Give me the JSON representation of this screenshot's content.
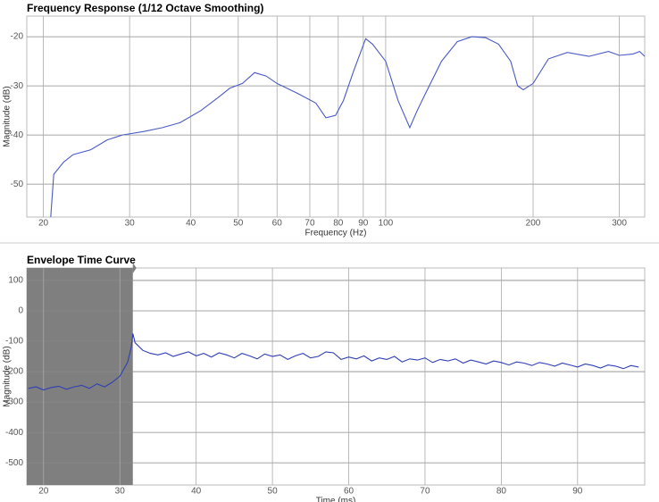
{
  "chart_data": [
    {
      "type": "line",
      "title": "Frequency Response (1/12 Octave Smoothing)",
      "xlabel": "Frequency (Hz)",
      "ylabel": "Magnitude (dB)",
      "xscale": "log",
      "xlim": [
        18.5,
        338
      ],
      "xticks": [
        20,
        30,
        40,
        50,
        60,
        70,
        80,
        90,
        100,
        200,
        300
      ],
      "ylim": [
        -56.7,
        -15.8
      ],
      "yticks": [
        -20,
        -30,
        -40,
        -50
      ],
      "grid": true,
      "color": "#4a5bc4",
      "x": [
        20.7,
        21,
        22,
        23,
        25,
        27,
        29,
        32,
        35,
        38,
        42,
        46,
        48,
        51,
        54,
        57,
        60,
        66,
        72,
        75.5,
        79,
        82,
        86,
        91,
        94,
        100,
        106,
        112,
        116,
        120,
        130,
        140,
        150,
        160,
        170,
        180,
        186,
        191,
        200,
        215,
        235,
        260,
        285,
        300,
        320,
        330,
        338
      ],
      "values": [
        -56.7,
        -48,
        -45.5,
        -44,
        -43,
        -41,
        -40,
        -39.3,
        -38.5,
        -37.5,
        -35,
        -32,
        -30.5,
        -29.5,
        -27.3,
        -28,
        -29.5,
        -31.5,
        -33.5,
        -36.5,
        -36,
        -33,
        -27,
        -20.4,
        -21.5,
        -25,
        -33,
        -38.5,
        -35,
        -32,
        -25,
        -21,
        -20,
        -20.2,
        -21.5,
        -25,
        -30,
        -30.8,
        -29.5,
        -24.5,
        -23.2,
        -24,
        -23,
        -23.8,
        -23.5,
        -23,
        -24
      ]
    },
    {
      "type": "line",
      "title": "Envelope Time Curve",
      "xlabel": "Time (ms)",
      "ylabel": "Magnitude (dB)",
      "xscale": "linear",
      "xlim": [
        17.8,
        98.8
      ],
      "xticks": [
        20,
        30,
        40,
        50,
        60,
        70,
        80,
        90
      ],
      "ylim": [
        -573,
        141
      ],
      "yticks": [
        100,
        0,
        -100,
        -200,
        -300,
        -400,
        -500
      ],
      "grid": true,
      "color": "#2f3fb5",
      "shaded_range": [
        17.8,
        31.7
      ],
      "shade_color": "#7f7f7f",
      "x": [
        18,
        19,
        20,
        21,
        22,
        23,
        24,
        25,
        26,
        27,
        28,
        29,
        30,
        31,
        31.5,
        31.7,
        32,
        33,
        34,
        35,
        36,
        37,
        38,
        39,
        40,
        41,
        42,
        43,
        44,
        45,
        46,
        47,
        48,
        49,
        50,
        51,
        52,
        53,
        54,
        55,
        56,
        57,
        58,
        59,
        60,
        61,
        62,
        63,
        64,
        65,
        66,
        67,
        68,
        69,
        70,
        71,
        72,
        73,
        74,
        75,
        76,
        77,
        78,
        79,
        80,
        81,
        82,
        83,
        84,
        85,
        86,
        87,
        88,
        89,
        90,
        91,
        92,
        93,
        94,
        95,
        96,
        97,
        98
      ],
      "values": [
        -255,
        -250,
        -260,
        -252,
        -248,
        -258,
        -250,
        -245,
        -255,
        -240,
        -250,
        -235,
        -215,
        -170,
        -120,
        -75,
        -105,
        -130,
        -140,
        -145,
        -138,
        -150,
        -142,
        -135,
        -148,
        -140,
        -152,
        -138,
        -145,
        -155,
        -140,
        -148,
        -158,
        -142,
        -150,
        -145,
        -160,
        -148,
        -140,
        -155,
        -150,
        -135,
        -138,
        -160,
        -152,
        -158,
        -148,
        -165,
        -155,
        -160,
        -150,
        -168,
        -158,
        -162,
        -155,
        -170,
        -160,
        -165,
        -158,
        -172,
        -162,
        -168,
        -175,
        -165,
        -170,
        -178,
        -168,
        -172,
        -180,
        -170,
        -175,
        -182,
        -172,
        -178,
        -185,
        -175,
        -180,
        -188,
        -178,
        -182,
        -190,
        -180,
        -185
      ]
    }
  ]
}
